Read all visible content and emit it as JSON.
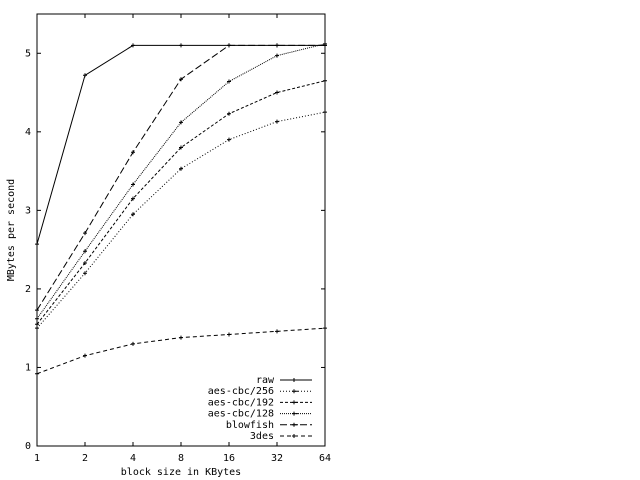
{
  "chart_data": {
    "type": "line",
    "x_label": "block size in KBytes",
    "y_label": "MBytes per second",
    "x": [
      1,
      2,
      4,
      8,
      16,
      32,
      64
    ],
    "xlim": [
      1,
      64
    ],
    "xticks": [
      1,
      2,
      4,
      8,
      16,
      32,
      64
    ],
    "xscale": "log2",
    "ylim": [
      0,
      5.5
    ],
    "yticks": [
      0,
      1,
      2,
      3,
      4,
      5
    ],
    "legend": "lower right",
    "series": [
      {
        "name": "raw",
        "color": "#000000",
        "values": [
          2.57,
          4.72,
          5.1,
          5.1,
          5.1,
          5.1,
          5.1
        ]
      },
      {
        "name": "aes-cbc/256",
        "color": "#000000",
        "values": [
          1.5,
          2.2,
          2.95,
          3.53,
          3.9,
          4.13,
          4.25
        ]
      },
      {
        "name": "aes-cbc/192",
        "color": "#000000",
        "values": [
          1.55,
          2.33,
          3.15,
          3.8,
          4.23,
          4.5,
          4.65
        ]
      },
      {
        "name": "aes-cbc/128",
        "color": "#000000",
        "values": [
          1.62,
          2.48,
          3.33,
          4.12,
          4.64,
          4.97,
          5.12
        ]
      },
      {
        "name": "blowfish",
        "color": "#000000",
        "values": [
          1.73,
          2.71,
          3.74,
          4.67,
          5.1,
          5.1,
          5.1
        ]
      },
      {
        "name": "3des",
        "color": "#000000",
        "values": [
          0.92,
          1.15,
          1.3,
          1.38,
          1.42,
          1.46,
          1.5
        ]
      }
    ]
  }
}
